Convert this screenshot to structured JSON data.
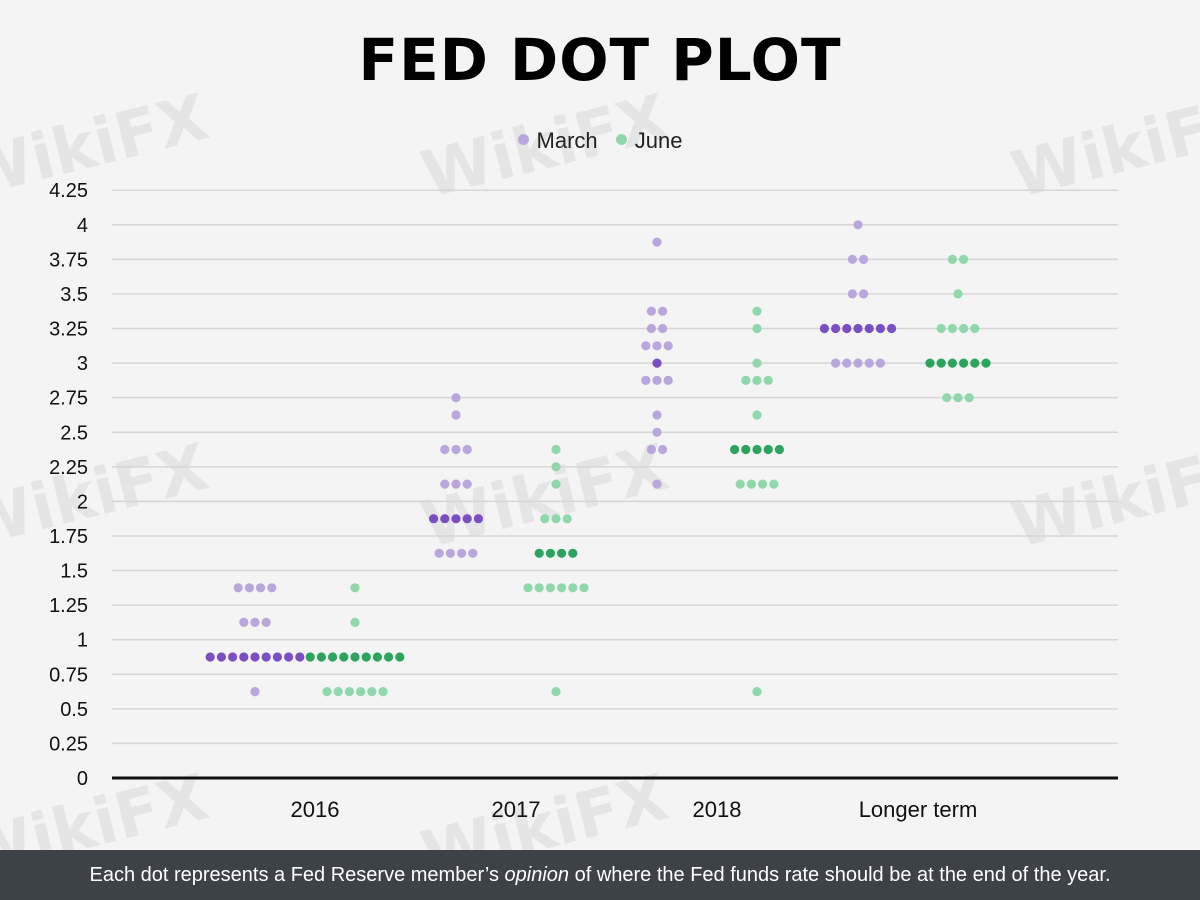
{
  "title": "FED DOT PLOT",
  "footer": {
    "text_before": "Each dot represents a Fed Reserve member’s ",
    "text_italic": "opinion",
    "text_after": " of where the Fed funds rate should be at the end of the year."
  },
  "watermark_text": "WikiFX",
  "colors": {
    "march_light": "#b9a6dd",
    "march_median": "#7b4fc4",
    "june_light": "#90d8ac",
    "june_median": "#2da45e",
    "grid": "#d6d6d6",
    "axis": "#111111",
    "footer_bg": "#3d4148"
  },
  "chart_data": {
    "type": "scatter",
    "title": "FED DOT PLOT",
    "categories": [
      "2016",
      "2017",
      "2018",
      "Longer term"
    ],
    "ylim": [
      0,
      4.25
    ],
    "yticks": [
      "0",
      "0.25",
      "0.5",
      "0.75",
      "1",
      "1.25",
      "1.5",
      "1.75",
      "2",
      "2.25",
      "2.5",
      "2.75",
      "3",
      "3.25",
      "3.5",
      "3.75",
      "4",
      "4.25"
    ],
    "grid": true,
    "legend_position": "top-center",
    "series": [
      {
        "name": "March",
        "color": "#b9a6dd",
        "median_color": "#7b4fc4",
        "groups": [
          {
            "category": "2016",
            "median": 0.875,
            "dots": [
              {
                "y": 1.375,
                "n": 4
              },
              {
                "y": 1.125,
                "n": 3
              },
              {
                "y": 0.875,
                "n": 9
              },
              {
                "y": 0.625,
                "n": 1
              }
            ]
          },
          {
            "category": "2017",
            "median": 1.875,
            "dots": [
              {
                "y": 2.75,
                "n": 1
              },
              {
                "y": 2.625,
                "n": 1
              },
              {
                "y": 2.375,
                "n": 3
              },
              {
                "y": 2.125,
                "n": 3
              },
              {
                "y": 1.875,
                "n": 5
              },
              {
                "y": 1.625,
                "n": 4
              }
            ]
          },
          {
            "category": "2018",
            "median": 3.0,
            "dots": [
              {
                "y": 3.875,
                "n": 1
              },
              {
                "y": 3.375,
                "n": 2
              },
              {
                "y": 3.25,
                "n": 2
              },
              {
                "y": 3.125,
                "n": 3
              },
              {
                "y": 3.0,
                "n": 1
              },
              {
                "y": 2.875,
                "n": 3
              },
              {
                "y": 2.625,
                "n": 1
              },
              {
                "y": 2.5,
                "n": 1
              },
              {
                "y": 2.375,
                "n": 2
              },
              {
                "y": 2.125,
                "n": 1
              }
            ]
          },
          {
            "category": "Longer term",
            "median": 3.25,
            "dots": [
              {
                "y": 4.0,
                "n": 1
              },
              {
                "y": 3.75,
                "n": 2
              },
              {
                "y": 3.5,
                "n": 2
              },
              {
                "y": 3.25,
                "n": 7
              },
              {
                "y": 3.0,
                "n": 5
              }
            ]
          }
        ]
      },
      {
        "name": "June",
        "color": "#90d8ac",
        "median_color": "#2da45e",
        "groups": [
          {
            "category": "2016",
            "median": 0.875,
            "dots": [
              {
                "y": 1.375,
                "n": 1
              },
              {
                "y": 1.125,
                "n": 1
              },
              {
                "y": 0.875,
                "n": 9
              },
              {
                "y": 0.625,
                "n": 6
              }
            ]
          },
          {
            "category": "2017",
            "median": 1.625,
            "dots": [
              {
                "y": 2.375,
                "n": 1
              },
              {
                "y": 2.25,
                "n": 1
              },
              {
                "y": 2.125,
                "n": 1
              },
              {
                "y": 1.875,
                "n": 3
              },
              {
                "y": 1.625,
                "n": 4
              },
              {
                "y": 1.375,
                "n": 6
              },
              {
                "y": 0.625,
                "n": 1
              }
            ]
          },
          {
            "category": "2018",
            "median": 2.375,
            "dots": [
              {
                "y": 3.375,
                "n": 1
              },
              {
                "y": 3.25,
                "n": 1
              },
              {
                "y": 3.0,
                "n": 1
              },
              {
                "y": 2.875,
                "n": 3
              },
              {
                "y": 2.625,
                "n": 1
              },
              {
                "y": 2.375,
                "n": 5
              },
              {
                "y": 2.125,
                "n": 4
              },
              {
                "y": 0.625,
                "n": 1
              }
            ]
          },
          {
            "category": "Longer term",
            "median": 3.0,
            "dots": [
              {
                "y": 3.75,
                "n": 2
              },
              {
                "y": 3.5,
                "n": 1
              },
              {
                "y": 3.25,
                "n": 4
              },
              {
                "y": 3.0,
                "n": 6
              },
              {
                "y": 2.75,
                "n": 3
              }
            ]
          }
        ]
      }
    ]
  }
}
